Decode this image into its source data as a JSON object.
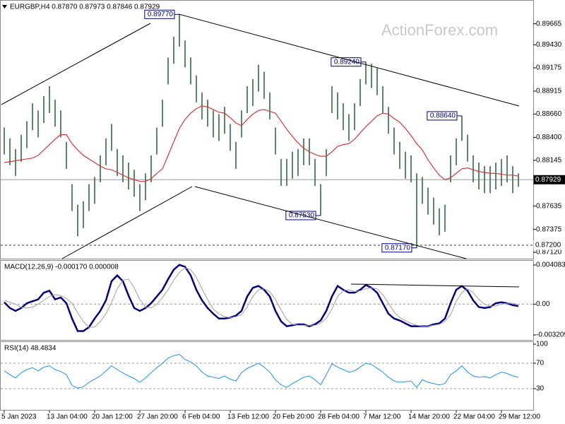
{
  "chart_data": [
    {
      "type": "ohlc",
      "title": "EURGBP,H4  0.87870 0.87973 0.87846 0.87929",
      "watermark": "ActionForex.com",
      "color": "#2e6b3e",
      "categories": [
        "5 Jan 2023",
        null,
        null,
        null,
        null,
        null,
        null,
        null,
        "13 Jan 04:00",
        null,
        null,
        null,
        null,
        null,
        null,
        null,
        "20 Jan 12:00",
        null,
        null,
        null,
        null,
        null,
        null,
        null,
        "27 Jan 20:00",
        null,
        null,
        null,
        null,
        null,
        null,
        null,
        "6 Feb 04:00",
        null,
        null,
        null,
        null,
        null,
        null,
        null,
        "13 Feb 12:00",
        null,
        null,
        null,
        null,
        null,
        null,
        null,
        "20 Feb 20:00",
        null,
        null,
        null,
        null,
        null,
        null,
        null,
        "28 Feb 04:00",
        null,
        null,
        null,
        null,
        null,
        null,
        null,
        "7 Mar 12:00",
        null,
        null,
        null,
        null,
        null,
        null,
        null,
        "14 Mar 20:00",
        null,
        null,
        null,
        null,
        null,
        null,
        null,
        "22 Mar 04:00",
        null,
        null,
        null,
        null,
        null,
        null,
        null,
        "29 Mar 12:00",
        null,
        null,
        null
      ],
      "high": [
        0.8851,
        0.8839,
        0.8827,
        0.8843,
        0.8858,
        0.8878,
        0.887,
        0.8886,
        0.8897,
        0.8882,
        0.887,
        0.8835,
        0.8788,
        0.8765,
        0.8769,
        0.8788,
        0.8796,
        0.882,
        0.8839,
        0.8855,
        0.8827,
        0.882,
        0.8812,
        0.8804,
        0.8788,
        0.88,
        0.882,
        0.8851,
        0.8882,
        0.8929,
        0.8952,
        0.8977,
        0.8948,
        0.8929,
        0.8909,
        0.889,
        0.8882,
        0.887,
        0.8866,
        0.8874,
        0.8855,
        0.8835,
        0.887,
        0.8897,
        0.8905,
        0.8921,
        0.8913,
        0.889,
        0.8851,
        0.8816,
        0.8816,
        0.8824,
        0.8827,
        0.8839,
        0.8839,
        0.8816,
        0.8788,
        0.8827,
        0.8897,
        0.889,
        0.8878,
        0.8866,
        0.8878,
        0.8905,
        0.8924,
        0.8922,
        0.8917,
        0.8897,
        0.8874,
        0.8851,
        0.8835,
        0.8824,
        0.882,
        0.88,
        0.8796,
        0.8784,
        0.8773,
        0.8761,
        0.8765,
        0.882,
        0.8839,
        0.8864,
        0.8843,
        0.882,
        0.8812,
        0.8808,
        0.8808,
        0.8812,
        0.8816,
        0.882,
        0.8808,
        0.88
      ],
      "low": [
        0.8821,
        0.8809,
        0.8797,
        0.8813,
        0.8828,
        0.8848,
        0.884,
        0.8856,
        0.8867,
        0.8852,
        0.884,
        0.8805,
        0.8758,
        0.873,
        0.8739,
        0.8758,
        0.8766,
        0.879,
        0.8809,
        0.8825,
        0.8797,
        0.879,
        0.8782,
        0.8774,
        0.8758,
        0.877,
        0.879,
        0.8821,
        0.8852,
        0.8899,
        0.8922,
        0.8941,
        0.8918,
        0.8899,
        0.8879,
        0.886,
        0.8852,
        0.884,
        0.8836,
        0.8844,
        0.8825,
        0.8805,
        0.884,
        0.8867,
        0.8875,
        0.8891,
        0.8883,
        0.886,
        0.8821,
        0.8786,
        0.8786,
        0.8794,
        0.8797,
        0.8809,
        0.8809,
        0.8786,
        0.8753,
        0.8797,
        0.8867,
        0.886,
        0.8848,
        0.8836,
        0.8848,
        0.8875,
        0.8899,
        0.8895,
        0.8887,
        0.8867,
        0.8844,
        0.8821,
        0.8805,
        0.8794,
        0.879,
        0.8717,
        0.8766,
        0.8754,
        0.8743,
        0.8731,
        0.8735,
        0.879,
        0.8809,
        0.8836,
        0.8813,
        0.879,
        0.8782,
        0.8778,
        0.8778,
        0.8782,
        0.8786,
        0.879,
        0.8778,
        0.8785
      ],
      "overlay": {
        "color": "#d9363e",
        "values": [
          0.8812,
          0.8813,
          0.8814,
          0.8815,
          0.8816,
          0.8817,
          0.882,
          0.8826,
          0.8832,
          0.8838,
          0.8843,
          0.8843,
          0.8833,
          0.8826,
          0.882,
          0.8816,
          0.8812,
          0.8808,
          0.8805,
          0.8804,
          0.8801,
          0.8798,
          0.8795,
          0.8793,
          0.8791,
          0.8791,
          0.8794,
          0.88,
          0.8805,
          0.882,
          0.8835,
          0.885,
          0.886,
          0.8867,
          0.8872,
          0.8875,
          0.8874,
          0.8871,
          0.8868,
          0.8867,
          0.8862,
          0.8856,
          0.8853,
          0.886,
          0.8866,
          0.887,
          0.8871,
          0.8869,
          0.8867,
          0.8858,
          0.8849,
          0.8841,
          0.8834,
          0.8828,
          0.8824,
          0.8821,
          0.8819,
          0.8819,
          0.8824,
          0.883,
          0.8832,
          0.8833,
          0.8838,
          0.8845,
          0.8852,
          0.8858,
          0.8864,
          0.8867,
          0.8866,
          0.8861,
          0.8857,
          0.885,
          0.8842,
          0.8833,
          0.8826,
          0.8815,
          0.8806,
          0.8798,
          0.8793,
          0.8795,
          0.88,
          0.8805,
          0.8806,
          0.8804,
          0.8802,
          0.8801,
          0.88,
          0.88,
          0.8799,
          0.8798,
          0.8798,
          0.8797
        ]
      },
      "ylim": [
        0.8705,
        0.8993
      ],
      "yticks": [
        0.89665,
        {
          "value": 0.8943,
          "label": "0.89430"
        },
        0.89175,
        0.88915,
        {
          "value": 0.8866,
          "label": "0.88660"
        },
        {
          "value": 0.884,
          "label": "0.88400"
        },
        0.88145,
        0.87635,
        0.87375,
        {
          "value": 0.8712,
          "label": "0.87120"
        }
      ],
      "grid": false,
      "annotations": [
        {
          "value": 0.8977,
          "label": "0.89770"
        },
        {
          "value": 0.8924,
          "label": "0.89240"
        },
        {
          "value": 0.8864,
          "label": "0.88640"
        },
        {
          "value": 0.8753,
          "label": "0.87530"
        },
        {
          "value": 0.8717,
          "label": "0.87170"
        }
      ],
      "price_lines": [
        {
          "value": 0.87929,
          "label": "0.87929",
          "style": "solid"
        },
        {
          "value": 0.872,
          "label": "0.87200",
          "style": "dashed"
        }
      ]
    },
    {
      "type": "line",
      "title": "MACD(12,26,9) -0.000170 0.000008",
      "series": [
        {
          "color": "#000080",
          "line_style": "bold",
          "values": [
            0.0002,
            -0.0004,
            -0.0007,
            -0.0004,
            0.0001,
            0.0003,
            0.0005,
            0.0012,
            0.0014,
            0.0005,
            0.0007,
            0.0001,
            -0.0015,
            -0.0028,
            -0.0028,
            -0.0024,
            -0.0015,
            -0.0007,
            0.0004,
            0.0024,
            0.003,
            0.0024,
            0.0009,
            -0.0004,
            -0.0007,
            -0.0004,
            0.0001,
            0.0008,
            0.0015,
            0.0026,
            0.0036,
            0.0041,
            0.0039,
            0.003,
            0.0015,
            0.0004,
            -0.0004,
            -0.001,
            -0.0015,
            -0.0015,
            -0.0014,
            -0.0012,
            -0.0007,
            0.0008,
            0.0017,
            0.0019,
            0.0015,
            0.0008,
            -0.0007,
            -0.0018,
            -0.0023,
            -0.0022,
            -0.0021,
            -0.0021,
            -0.0023,
            -0.0021,
            -0.0017,
            -0.0007,
            0.0008,
            0.0019,
            0.0015,
            0.0012,
            0.0012,
            0.0015,
            0.002,
            0.0017,
            0.0012,
            0.0001,
            -0.001,
            -0.0015,
            -0.0017,
            -0.002,
            -0.0023,
            -0.0023,
            -0.0023,
            -0.0023,
            -0.0021,
            -0.002,
            -0.0015,
            0.0001,
            0.0015,
            0.0019,
            0.0014,
            0.0004,
            -0.0003,
            -0.0004,
            -0.0003,
            0.0001,
            0.0002,
            0.0001,
            -0.0001,
            -0.0002
          ]
        },
        {
          "color": "#a0a0a0",
          "values": [
            0.0004,
            0.0002,
            0.0,
            -0.0003,
            -0.0004,
            -0.0003,
            0.0,
            0.0004,
            0.0008,
            0.001,
            0.0009,
            0.0006,
            0.0001,
            -0.0009,
            -0.0018,
            -0.0024,
            -0.0024,
            -0.0018,
            -0.001,
            0.0002,
            0.0016,
            0.0025,
            0.0026,
            0.0017,
            0.0005,
            -0.0003,
            -0.0004,
            0.0,
            0.0007,
            0.0015,
            0.0025,
            0.0033,
            0.0038,
            0.0036,
            0.0028,
            0.0016,
            0.0005,
            -0.0005,
            -0.001,
            -0.0013,
            -0.0014,
            -0.0013,
            -0.0011,
            -0.0003,
            0.0008,
            0.0015,
            0.0016,
            0.0013,
            0.0005,
            -0.0006,
            -0.0016,
            -0.0021,
            -0.0022,
            -0.0022,
            -0.0022,
            -0.0022,
            -0.002,
            -0.0015,
            -0.0005,
            0.0008,
            0.0014,
            0.0015,
            0.0013,
            0.0014,
            0.0016,
            0.0017,
            0.0016,
            0.001,
            0.0001,
            -0.0008,
            -0.0014,
            -0.0017,
            -0.002,
            -0.0022,
            -0.0023,
            -0.0023,
            -0.0022,
            -0.0021,
            -0.0018,
            -0.0011,
            0.0003,
            0.0012,
            0.0016,
            0.0012,
            0.0005,
            0.0,
            -0.0002,
            -0.0002,
            0.0,
            0.0001,
            0.0001,
            0.0
          ]
        }
      ],
      "ylim": [
        -0.003209,
        0.004083
      ],
      "yticks": [
        0.004083,
        {
          "value": 0,
          "label": "0.00"
        },
        -0.003209
      ],
      "grid": "dashed"
    },
    {
      "type": "line",
      "title": "RSI(14) 48.4834",
      "series": [
        {
          "color": "#1e90ff",
          "values": [
            58,
            52,
            47,
            55,
            60,
            63,
            58,
            64,
            66,
            60,
            57,
            52,
            35,
            31,
            33,
            40,
            45,
            50,
            58,
            66,
            60,
            55,
            50,
            46,
            40,
            47,
            55,
            63,
            70,
            78,
            82,
            84,
            76,
            72,
            66,
            56,
            50,
            48,
            46,
            50,
            45,
            42,
            55,
            62,
            66,
            70,
            64,
            56,
            44,
            36,
            32,
            38,
            43,
            48,
            50,
            44,
            36,
            52,
            69,
            64,
            60,
            56,
            58,
            64,
            70,
            68,
            62,
            56,
            48,
            42,
            40,
            41,
            42,
            32,
            44,
            40,
            38,
            36,
            38,
            52,
            58,
            66,
            56,
            50,
            48,
            49,
            47,
            52,
            56,
            54,
            50,
            48
          ]
        }
      ],
      "ylim": [
        -3.3,
        100
      ],
      "yticks": [
        100,
        70,
        30
      ],
      "grid": "dashed"
    }
  ]
}
